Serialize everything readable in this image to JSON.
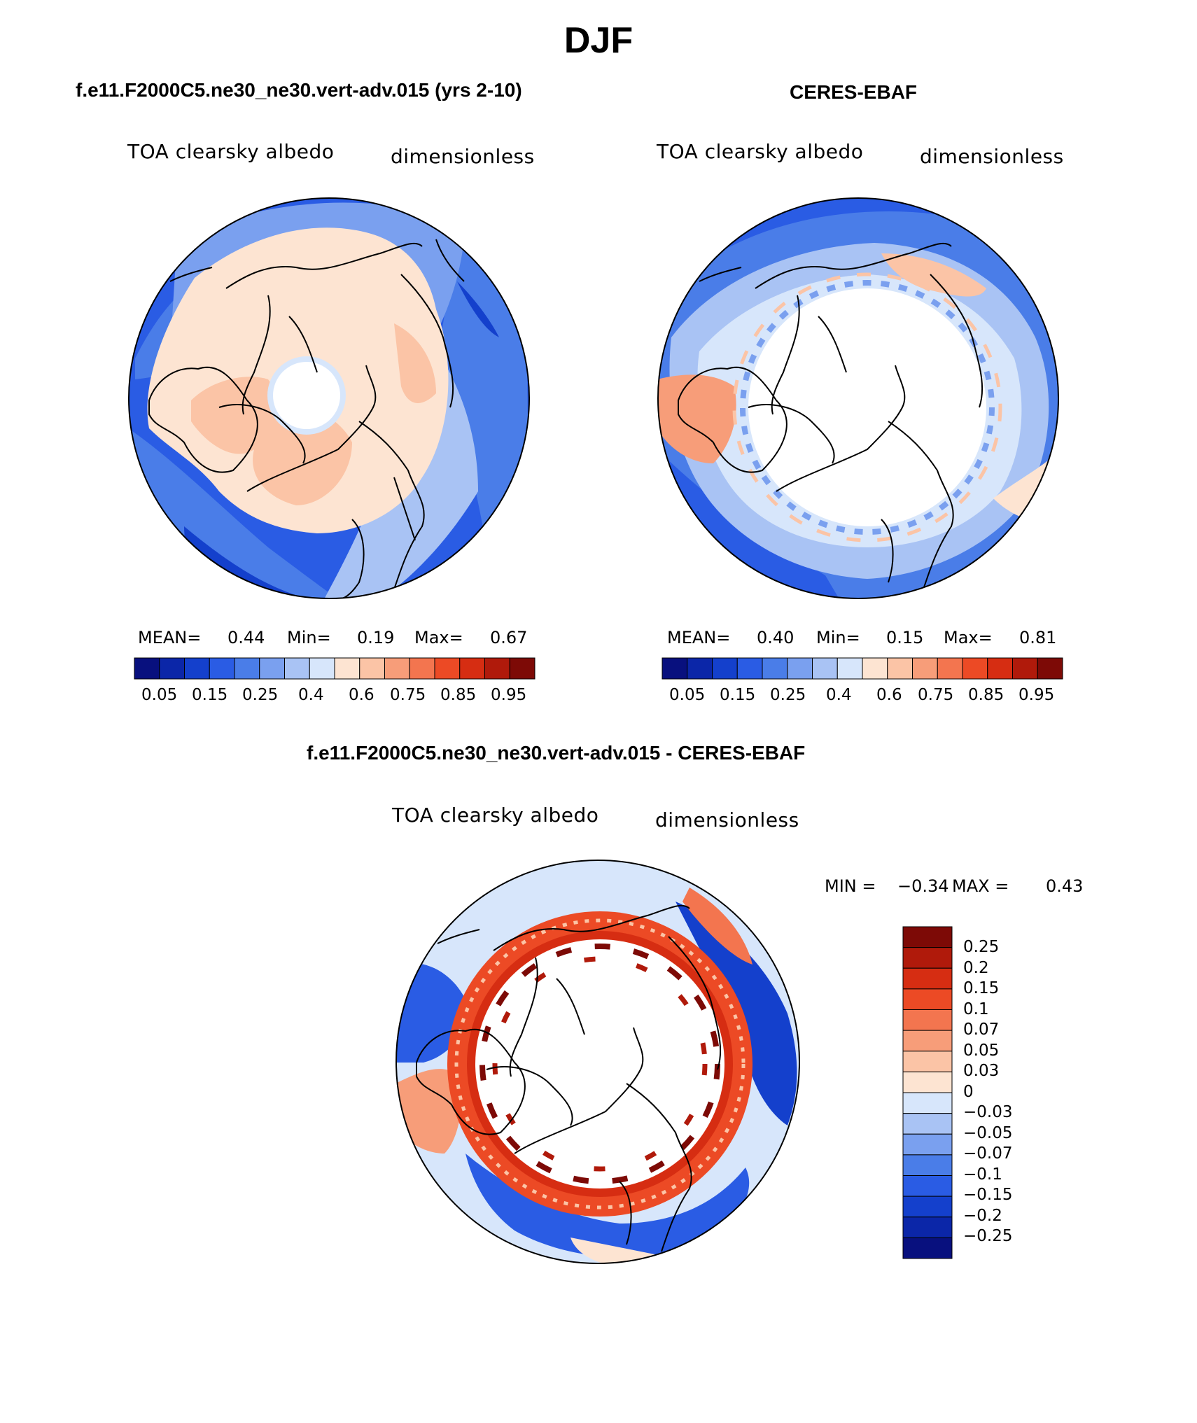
{
  "figure_title": "DJF",
  "palette": {
    "c01": "#08107e",
    "c02": "#0b26a8",
    "c03": "#1440cc",
    "c04": "#2a5ce4",
    "c05": "#4a7de8",
    "c06": "#7aa0ef",
    "c07": "#a9c3f4",
    "c08": "#d7e6fb",
    "w01": "#fde4d2",
    "w02": "#fbc4a6",
    "w03": "#f79d79",
    "w04": "#f3754f",
    "w05": "#ec4a25",
    "w06": "#d62d12",
    "w07": "#b01a0b",
    "w08": "#7d0a06",
    "missing": "#ffffff",
    "coast": "#000000"
  },
  "panels": [
    {
      "title": "f.e11.F2000C5.ne30_ne30.vert-adv.015 (yrs 2-10)",
      "variable": "TOA clearsky albedo",
      "units": "dimensionless",
      "stats": {
        "mean_label": "MEAN=",
        "mean": "0.44",
        "min_label": "Min=",
        "min": "0.19",
        "max_label": "Max=",
        "max": "0.67"
      },
      "colorbar_ticks": [
        "0.05",
        "0.15",
        "0.25",
        "0.4",
        "0.6",
        "0.75",
        "0.85",
        "0.95"
      ]
    },
    {
      "title": "CERES-EBAF",
      "variable": "TOA clearsky albedo",
      "units": "dimensionless",
      "stats": {
        "mean_label": "MEAN=",
        "mean": "0.40",
        "min_label": "Min=",
        "min": "0.15",
        "max_label": "Max=",
        "max": "0.81"
      },
      "colorbar_ticks": [
        "0.05",
        "0.15",
        "0.25",
        "0.4",
        "0.6",
        "0.75",
        "0.85",
        "0.95"
      ]
    },
    {
      "title": "f.e11.F2000C5.ne30_ne30.vert-adv.015 - CERES-EBAF",
      "variable": "TOA clearsky albedo",
      "units": "dimensionless",
      "stats": {
        "min_label": "MIN =",
        "min": "−0.34",
        "max_label": "MAX =",
        "max": "0.43"
      },
      "colorbar_ticks": [
        "0.25",
        "0.2",
        "0.15",
        "0.1",
        "0.07",
        "0.05",
        "0.03",
        "0",
        "−0.03",
        "−0.05",
        "−0.07",
        "−0.1",
        "−0.15",
        "−0.2",
        "−0.25"
      ]
    }
  ]
}
